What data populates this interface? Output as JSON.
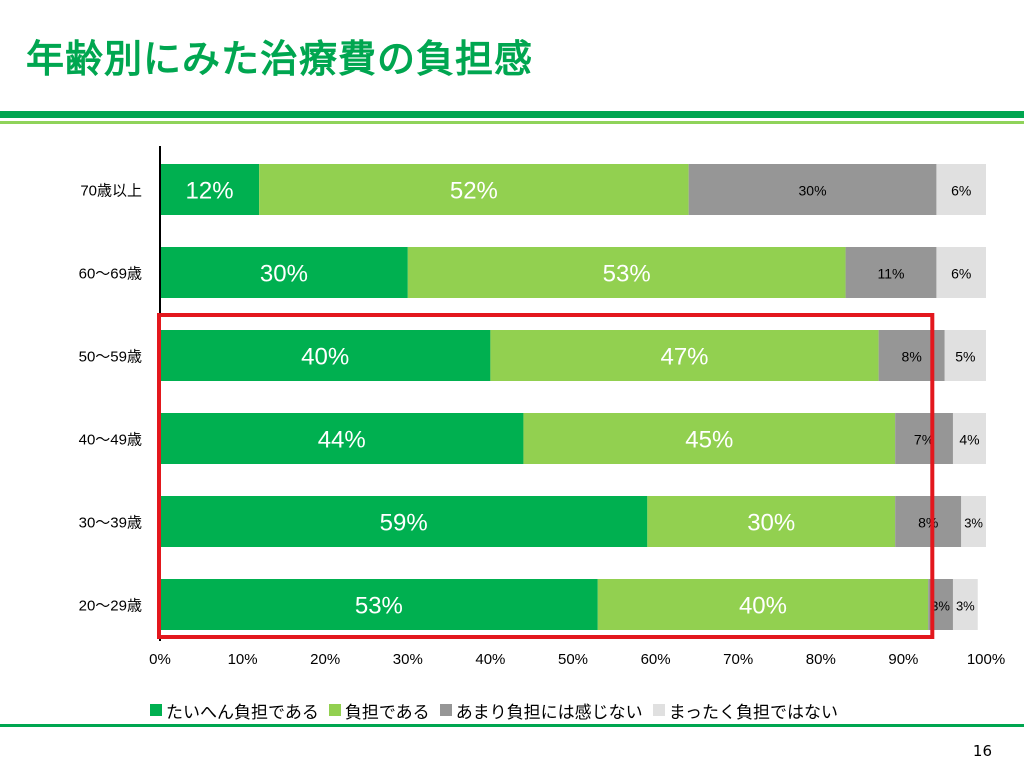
{
  "slide": {
    "title": "年齢別にみた治療費の負担感",
    "page_number": "16"
  },
  "colors": {
    "brand_green": "#00a650",
    "light_green": "#8fd35a",
    "highlight_red": "#e3171d"
  },
  "chart_data": {
    "type": "bar",
    "orientation": "horizontal",
    "stacked": "percent",
    "categories": [
      "70歳以上",
      "60～69歳",
      "50～59歳",
      "40～49歳",
      "30～39歳",
      "20～29歳"
    ],
    "series": [
      {
        "name": "たいへん負担である",
        "color": "#00b050",
        "values": [
          12,
          30,
          40,
          44,
          59,
          53
        ]
      },
      {
        "name": "負担である",
        "color": "#92d050",
        "values": [
          52,
          53,
          47,
          45,
          30,
          40
        ]
      },
      {
        "name": "あまり負担には感じない",
        "color": "#969696",
        "values": [
          30,
          11,
          8,
          7,
          8,
          3
        ]
      },
      {
        "name": "まったく負担ではない",
        "color": "#e0e0e0",
        "values": [
          6,
          6,
          5,
          4,
          3,
          3
        ]
      }
    ],
    "data_labels": [
      [
        "12%",
        "52%",
        "30%",
        "6%"
      ],
      [
        "30%",
        "53%",
        "11%",
        "6%"
      ],
      [
        "40%",
        "47%",
        "8%",
        "5%"
      ],
      [
        "44%",
        "45%",
        "7%",
        "4%"
      ],
      [
        "59%",
        "30%",
        "8%",
        "3%"
      ],
      [
        "53%",
        "40%",
        "3%",
        "3%"
      ]
    ],
    "xlim": [
      0,
      100
    ],
    "x_ticks": [
      "0%",
      "10%",
      "20%",
      "30%",
      "40%",
      "50%",
      "60%",
      "70%",
      "80%",
      "90%",
      "100%"
    ],
    "grid": false,
    "legend_position": "bottom",
    "highlight": {
      "categories": [
        "50～59歳",
        "40～49歳",
        "30～39歳",
        "20～29歳"
      ],
      "color": "#e3171d"
    }
  }
}
